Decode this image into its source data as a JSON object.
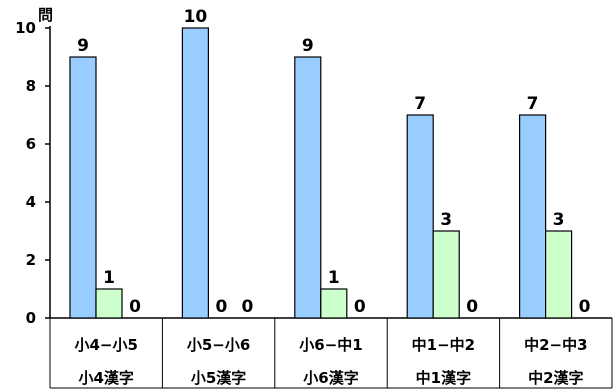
{
  "chart_data": {
    "type": "bar",
    "title": "",
    "unit_label": "問",
    "ylim": [
      0,
      10
    ],
    "yticks": [
      0,
      2,
      4,
      6,
      8,
      10
    ],
    "grid": false,
    "categories": [
      {
        "line1": "小4−小5",
        "line2": "小4漢字"
      },
      {
        "line1": "小5−小6",
        "line2": "小5漢字"
      },
      {
        "line1": "小6−中1",
        "line2": "小6漢字"
      },
      {
        "line1": "中1−中2",
        "line2": "中1漢字"
      },
      {
        "line1": "中2−中3",
        "line2": "中2漢字"
      }
    ],
    "series": [
      {
        "values": [
          9,
          10,
          9,
          7,
          7
        ],
        "color": "#99CCFF"
      },
      {
        "values": [
          1,
          0,
          1,
          3,
          3
        ],
        "color": "#CCFFCC"
      },
      {
        "values": [
          0,
          0,
          0,
          0,
          0
        ],
        "color": "#FFFFFF"
      }
    ]
  }
}
